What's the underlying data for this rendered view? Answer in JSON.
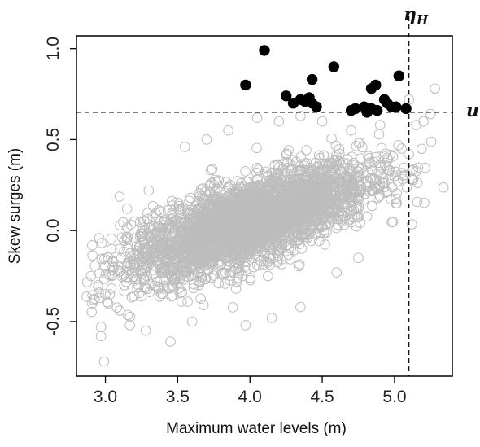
{
  "chart_data": {
    "type": "scatter",
    "xlabel": "Maximum water levels (m)",
    "ylabel": "Skew surges (m)",
    "xlim": [
      2.8,
      5.4
    ],
    "ylim": [
      -0.8,
      1.07
    ],
    "x_ticks": [
      "3.0",
      "3.5",
      "4.0",
      "4.5",
      "5.0"
    ],
    "y_ticks": [
      "-0.5",
      "0.0",
      "0.5",
      "1.0"
    ],
    "grid": false,
    "legend": "none",
    "threshold_lines": [
      {
        "label": "u",
        "orientation": "horizontal",
        "value": 0.65
      },
      {
        "label": "η",
        "subscript": "H",
        "orientation": "vertical",
        "value": 5.1
      }
    ],
    "series": [
      {
        "style": "open circles",
        "color": "#bdbdbd",
        "points": [
          [
            2.95,
            -0.3
          ],
          [
            2.97,
            -0.53
          ],
          [
            2.97,
            -0.58
          ],
          [
            2.99,
            -0.72
          ],
          [
            3.02,
            -0.4
          ],
          [
            3.1,
            -0.44
          ],
          [
            3.17,
            -0.52
          ],
          [
            3.28,
            -0.55
          ],
          [
            3.45,
            -0.61
          ],
          [
            3.6,
            -0.5
          ],
          [
            3.97,
            -0.52
          ],
          [
            4.15,
            -0.48
          ],
          [
            4.35,
            -0.42
          ],
          [
            4.6,
            -0.23
          ],
          [
            4.75,
            -0.15
          ],
          [
            4.95,
            0.4
          ],
          [
            5.05,
            0.45
          ],
          [
            5.1,
            0.42
          ],
          [
            5.15,
            0.58
          ],
          [
            5.2,
            0.6
          ],
          [
            5.28,
            0.78
          ],
          [
            5.25,
            0.64
          ],
          [
            5.1,
            0.72
          ],
          [
            4.9,
            0.58
          ],
          [
            4.7,
            0.55
          ],
          [
            3.55,
            0.46
          ],
          [
            3.7,
            0.5
          ],
          [
            3.85,
            0.55
          ],
          [
            4.05,
            0.62
          ],
          [
            4.2,
            0.6
          ],
          [
            4.35,
            0.63
          ],
          [
            4.5,
            0.6
          ],
          [
            3.2,
            0.05
          ],
          [
            3.1,
            -0.1
          ],
          [
            3.05,
            -0.2
          ],
          [
            3.15,
            0.12
          ],
          [
            3.3,
            0.22
          ],
          [
            2.9,
            -0.25
          ],
          [
            3.0,
            -0.35
          ],
          [
            5.0,
            0.3
          ]
        ],
        "cloud": {
          "center": [
            4.0,
            0.05
          ],
          "count": 3400,
          "sd_major": 0.42,
          "sd_minor": 0.105,
          "slope": 0.28
        }
      },
      {
        "style": "filled circles",
        "color": "#000000",
        "points": [
          [
            4.1,
            0.99
          ],
          [
            3.97,
            0.8
          ],
          [
            4.58,
            0.9
          ],
          [
            4.43,
            0.83
          ],
          [
            5.03,
            0.85
          ],
          [
            4.87,
            0.8
          ],
          [
            4.84,
            0.78
          ],
          [
            4.93,
            0.72
          ],
          [
            4.25,
            0.74
          ],
          [
            4.3,
            0.7
          ],
          [
            4.35,
            0.72
          ],
          [
            4.38,
            0.71
          ],
          [
            4.41,
            0.73
          ],
          [
            4.43,
            0.7
          ],
          [
            4.46,
            0.68
          ],
          [
            4.7,
            0.66
          ],
          [
            4.73,
            0.67
          ],
          [
            4.79,
            0.68
          ],
          [
            4.81,
            0.65
          ],
          [
            4.84,
            0.67
          ],
          [
            4.88,
            0.66
          ],
          [
            4.95,
            0.7
          ],
          [
            4.98,
            0.68
          ],
          [
            5.01,
            0.68
          ],
          [
            5.08,
            0.67
          ]
        ]
      }
    ]
  }
}
